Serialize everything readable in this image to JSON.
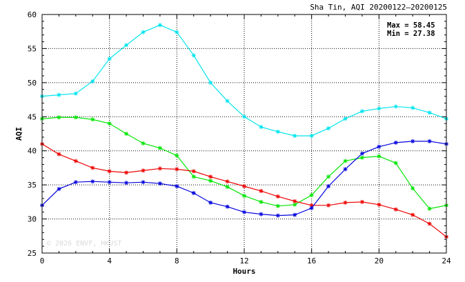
{
  "chart_data": {
    "type": "line",
    "title": "Sha Tin, AQI 20200122–20200125",
    "xlabel": "Hours",
    "ylabel": "AQI",
    "xlim": [
      0,
      24
    ],
    "ylim": [
      25,
      60
    ],
    "xticks": [
      0,
      4,
      8,
      12,
      16,
      20,
      24
    ],
    "yticks": [
      25,
      30,
      35,
      40,
      45,
      50,
      55,
      60
    ],
    "grid": true,
    "stats": {
      "max_label": "Max = 58.45",
      "min_label": "Min = 27.38"
    },
    "watermark": "© 2026  ENVF, HKUST",
    "x": [
      0,
      1,
      2,
      3,
      4,
      5,
      6,
      7,
      8,
      9,
      10,
      11,
      12,
      13,
      14,
      15,
      16,
      17,
      18,
      19,
      20,
      21,
      22,
      23,
      24
    ],
    "series": [
      {
        "color": "#00e5ee",
        "values": [
          48.0,
          48.2,
          48.4,
          50.2,
          53.5,
          55.5,
          57.4,
          58.45,
          57.4,
          54.0,
          50.0,
          47.3,
          45.0,
          43.5,
          42.8,
          42.2,
          42.2,
          43.3,
          44.7,
          45.8,
          46.2,
          46.5,
          46.3,
          45.6,
          44.7
        ]
      },
      {
        "color": "#00e600",
        "values": [
          44.7,
          44.9,
          44.9,
          44.6,
          44.0,
          42.5,
          41.1,
          40.4,
          39.3,
          36.2,
          35.6,
          34.7,
          33.4,
          32.5,
          31.9,
          32.1,
          33.5,
          36.2,
          38.5,
          39.0,
          39.2,
          38.2,
          34.5,
          31.5,
          32.0
        ]
      },
      {
        "color": "#ee0000",
        "values": [
          41.0,
          39.5,
          38.5,
          37.5,
          37.0,
          36.8,
          37.1,
          37.4,
          37.3,
          37.0,
          36.2,
          35.5,
          34.8,
          34.1,
          33.3,
          32.6,
          32.0,
          32.0,
          32.4,
          32.5,
          32.1,
          31.4,
          30.6,
          29.3,
          27.38
        ]
      },
      {
        "color": "#0000dd",
        "values": [
          32.0,
          34.4,
          35.4,
          35.5,
          35.4,
          35.3,
          35.4,
          35.2,
          34.8,
          33.8,
          32.4,
          31.8,
          31.0,
          30.7,
          30.5,
          30.6,
          31.6,
          34.8,
          37.3,
          39.6,
          40.6,
          41.2,
          41.4,
          41.4,
          41.0
        ]
      }
    ]
  }
}
